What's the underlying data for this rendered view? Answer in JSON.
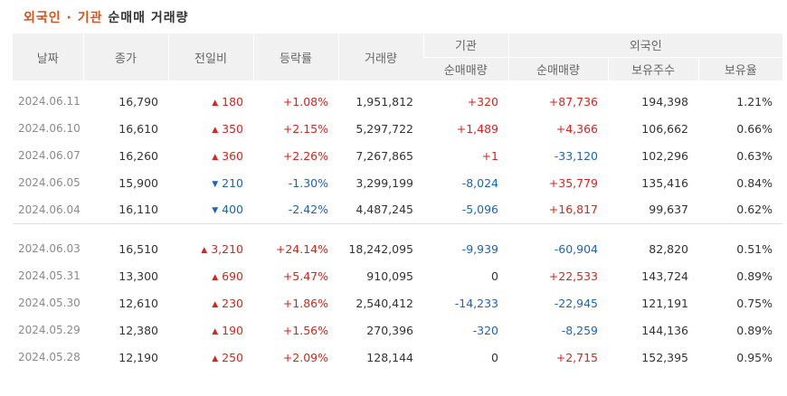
{
  "title": {
    "accent": "외국인 · 기관",
    "sub": "순매매 거래량"
  },
  "headers": {
    "date": "날짜",
    "close": "종가",
    "change": "전일비",
    "rate": "등락률",
    "volume": "거래량",
    "inst_group": "기관",
    "inst_net": "순매매량",
    "foreign_group": "외국인",
    "foreign_net": "순매매량",
    "foreign_holding": "보유주수",
    "foreign_ratio": "보유율"
  },
  "arrows": {
    "up": "▲",
    "down": "▼"
  },
  "colors": {
    "title_accent": "#d2541c",
    "up": "#d4251f",
    "down": "#1e64b4",
    "header_bg": "#f1f1f1"
  },
  "rows": [
    {
      "date": "2024.06.11",
      "close": "16,790",
      "dir": "up",
      "change": "180",
      "rate": "+1.08%",
      "volume": "1,951,812",
      "inst": "+320",
      "foreign": "+87,736",
      "holding": "194,398",
      "ratio": "1.21%"
    },
    {
      "date": "2024.06.10",
      "close": "16,610",
      "dir": "up",
      "change": "350",
      "rate": "+2.15%",
      "volume": "5,297,722",
      "inst": "+1,489",
      "foreign": "+4,366",
      "holding": "106,662",
      "ratio": "0.66%"
    },
    {
      "date": "2024.06.07",
      "close": "16,260",
      "dir": "up",
      "change": "360",
      "rate": "+2.26%",
      "volume": "7,267,865",
      "inst": "+1",
      "foreign": "-33,120",
      "holding": "102,296",
      "ratio": "0.63%"
    },
    {
      "date": "2024.06.05",
      "close": "15,900",
      "dir": "down",
      "change": "210",
      "rate": "-1.30%",
      "volume": "3,299,199",
      "inst": "-8,024",
      "foreign": "+35,779",
      "holding": "135,416",
      "ratio": "0.84%"
    },
    {
      "date": "2024.06.04",
      "close": "16,110",
      "dir": "down",
      "change": "400",
      "rate": "-2.42%",
      "volume": "4,487,245",
      "inst": "-5,096",
      "foreign": "+16,817",
      "holding": "99,637",
      "ratio": "0.62%"
    },
    {
      "date": "2024.06.03",
      "close": "16,510",
      "dir": "up",
      "change": "3,210",
      "rate": "+24.14%",
      "volume": "18,242,095",
      "inst": "-9,939",
      "foreign": "-60,904",
      "holding": "82,820",
      "ratio": "0.51%"
    },
    {
      "date": "2024.05.31",
      "close": "13,300",
      "dir": "up",
      "change": "690",
      "rate": "+5.47%",
      "volume": "910,095",
      "inst": "0",
      "foreign": "+22,533",
      "holding": "143,724",
      "ratio": "0.89%"
    },
    {
      "date": "2024.05.30",
      "close": "12,610",
      "dir": "up",
      "change": "230",
      "rate": "+1.86%",
      "volume": "2,540,412",
      "inst": "-14,233",
      "foreign": "-22,945",
      "holding": "121,191",
      "ratio": "0.75%"
    },
    {
      "date": "2024.05.29",
      "close": "12,380",
      "dir": "up",
      "change": "190",
      "rate": "+1.56%",
      "volume": "270,396",
      "inst": "-320",
      "foreign": "-8,259",
      "holding": "144,136",
      "ratio": "0.89%"
    },
    {
      "date": "2024.05.28",
      "close": "12,190",
      "dir": "up",
      "change": "250",
      "rate": "+2.09%",
      "volume": "128,144",
      "inst": "0",
      "foreign": "+2,715",
      "holding": "152,395",
      "ratio": "0.95%"
    }
  ]
}
